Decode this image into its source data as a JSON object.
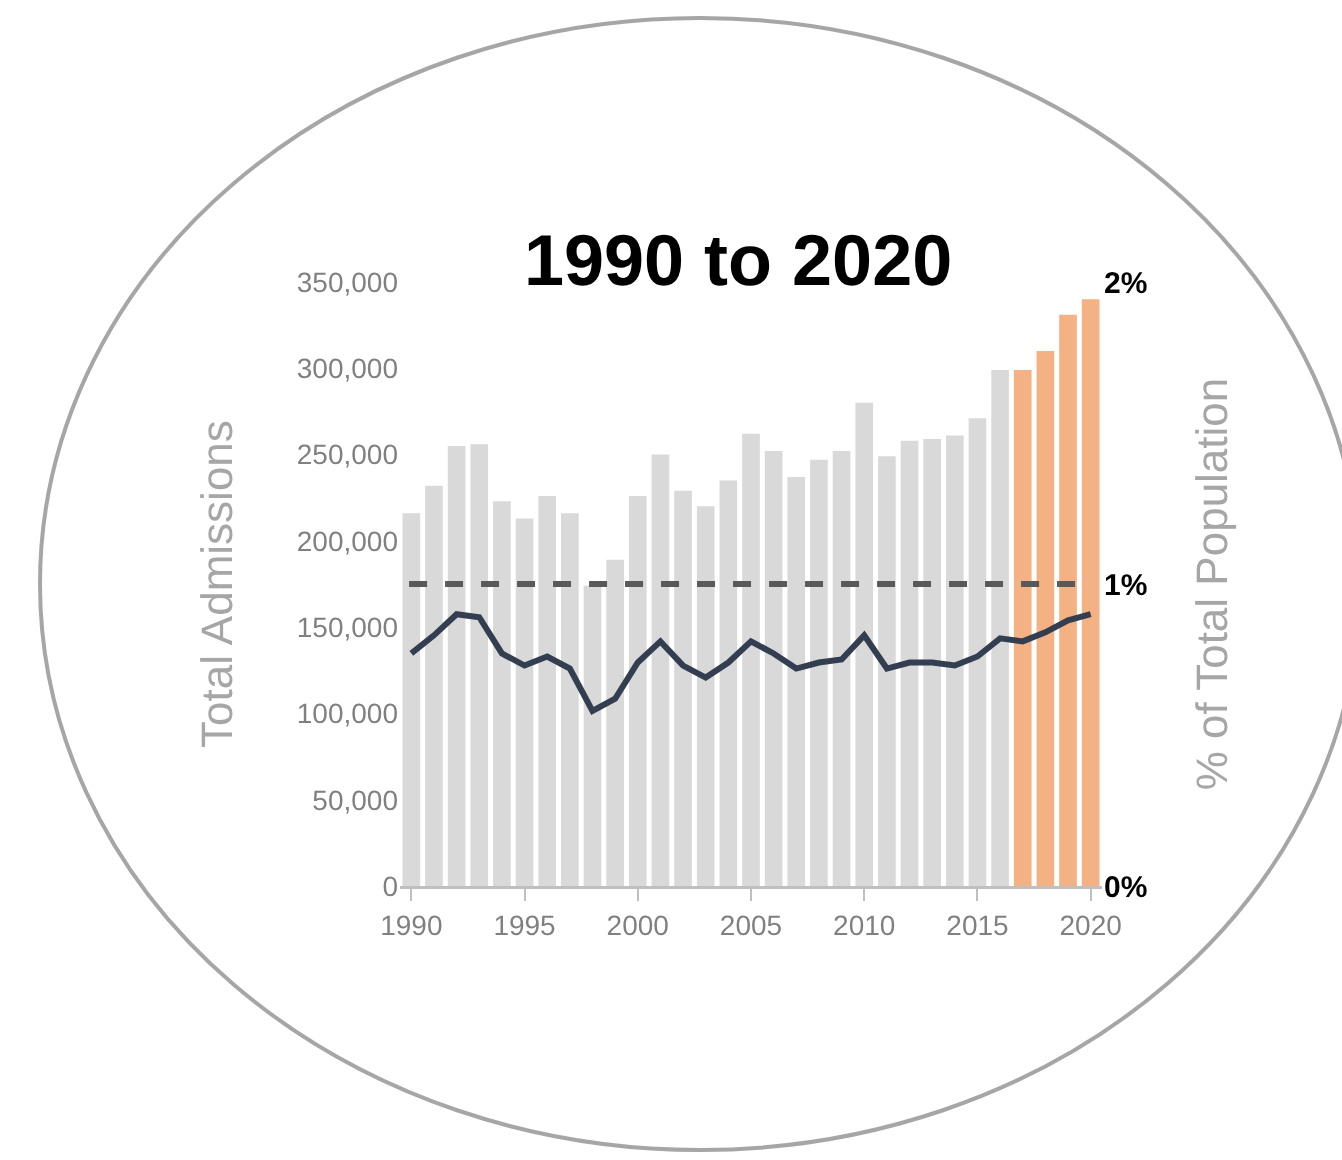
{
  "chart_data": {
    "type": "bar",
    "title": "1990 to 2020",
    "ylabel": "Total Admissions",
    "y2label": "% of Total Population",
    "x": [
      1990,
      1991,
      1992,
      1993,
      1994,
      1995,
      1996,
      1997,
      1998,
      1999,
      2000,
      2001,
      2002,
      2003,
      2004,
      2005,
      2006,
      2007,
      2008,
      2009,
      2010,
      2011,
      2012,
      2013,
      2014,
      2015,
      2016,
      2017,
      2018,
      2019,
      2020
    ],
    "xlim": [
      1989.5,
      2020.5
    ],
    "xticks": [
      1990,
      1995,
      2000,
      2005,
      2010,
      2015,
      2020
    ],
    "ylim": [
      0,
      350000
    ],
    "yticks": [
      {
        "value": 0,
        "label": "0"
      },
      {
        "value": 50000,
        "label": "50,000"
      },
      {
        "value": 100000,
        "label": "100,000"
      },
      {
        "value": 150000,
        "label": "150,000"
      },
      {
        "value": 200000,
        "label": "200,000"
      },
      {
        "value": 250000,
        "label": "250,000"
      },
      {
        "value": 300000,
        "label": "300,000"
      },
      {
        "value": 350000,
        "label": "350,000"
      }
    ],
    "y2lim": [
      0,
      2
    ],
    "y2ticks": [
      {
        "value": 0,
        "label": "0%"
      },
      {
        "value": 1,
        "label": "1%"
      },
      {
        "value": 2,
        "label": "2%"
      }
    ],
    "series": [
      {
        "colors": [
          "#d9d9d9",
          "#d9d9d9",
          "#d9d9d9",
          "#d9d9d9",
          "#d9d9d9",
          "#d9d9d9",
          "#d9d9d9",
          "#d9d9d9",
          "#d9d9d9",
          "#d9d9d9",
          "#d9d9d9",
          "#d9d9d9",
          "#d9d9d9",
          "#d9d9d9",
          "#d9d9d9",
          "#d9d9d9",
          "#d9d9d9",
          "#d9d9d9",
          "#d9d9d9",
          "#d9d9d9",
          "#d9d9d9",
          "#d9d9d9",
          "#d9d9d9",
          "#d9d9d9",
          "#d9d9d9",
          "#d9d9d9",
          "#d9d9d9",
          "#f4b183",
          "#f4b183",
          "#f4b183",
          "#f4b183"
        ],
        "values": [
          216000,
          232000,
          255000,
          256000,
          223000,
          213000,
          226000,
          216000,
          174000,
          189000,
          226000,
          250000,
          229000,
          220000,
          235000,
          262000,
          252000,
          237000,
          247000,
          252000,
          280000,
          249000,
          258000,
          259000,
          261000,
          271000,
          299000,
          299000,
          310000,
          331000,
          340000
        ]
      },
      {
        "type": "line",
        "axis": "y2",
        "color": "#333f50",
        "values": [
          0.77,
          0.83,
          0.9,
          0.89,
          0.77,
          0.73,
          0.76,
          0.72,
          0.58,
          0.62,
          0.74,
          0.81,
          0.73,
          0.69,
          0.74,
          0.81,
          0.77,
          0.72,
          0.74,
          0.75,
          0.83,
          0.72,
          0.74,
          0.74,
          0.73,
          0.76,
          0.82,
          0.81,
          0.84,
          0.88,
          0.9
        ]
      }
    ],
    "ref_lines": [
      {
        "axis": "y2",
        "value": 1,
        "color": "#595959",
        "line_style": "dashed"
      }
    ],
    "marker": "none"
  }
}
